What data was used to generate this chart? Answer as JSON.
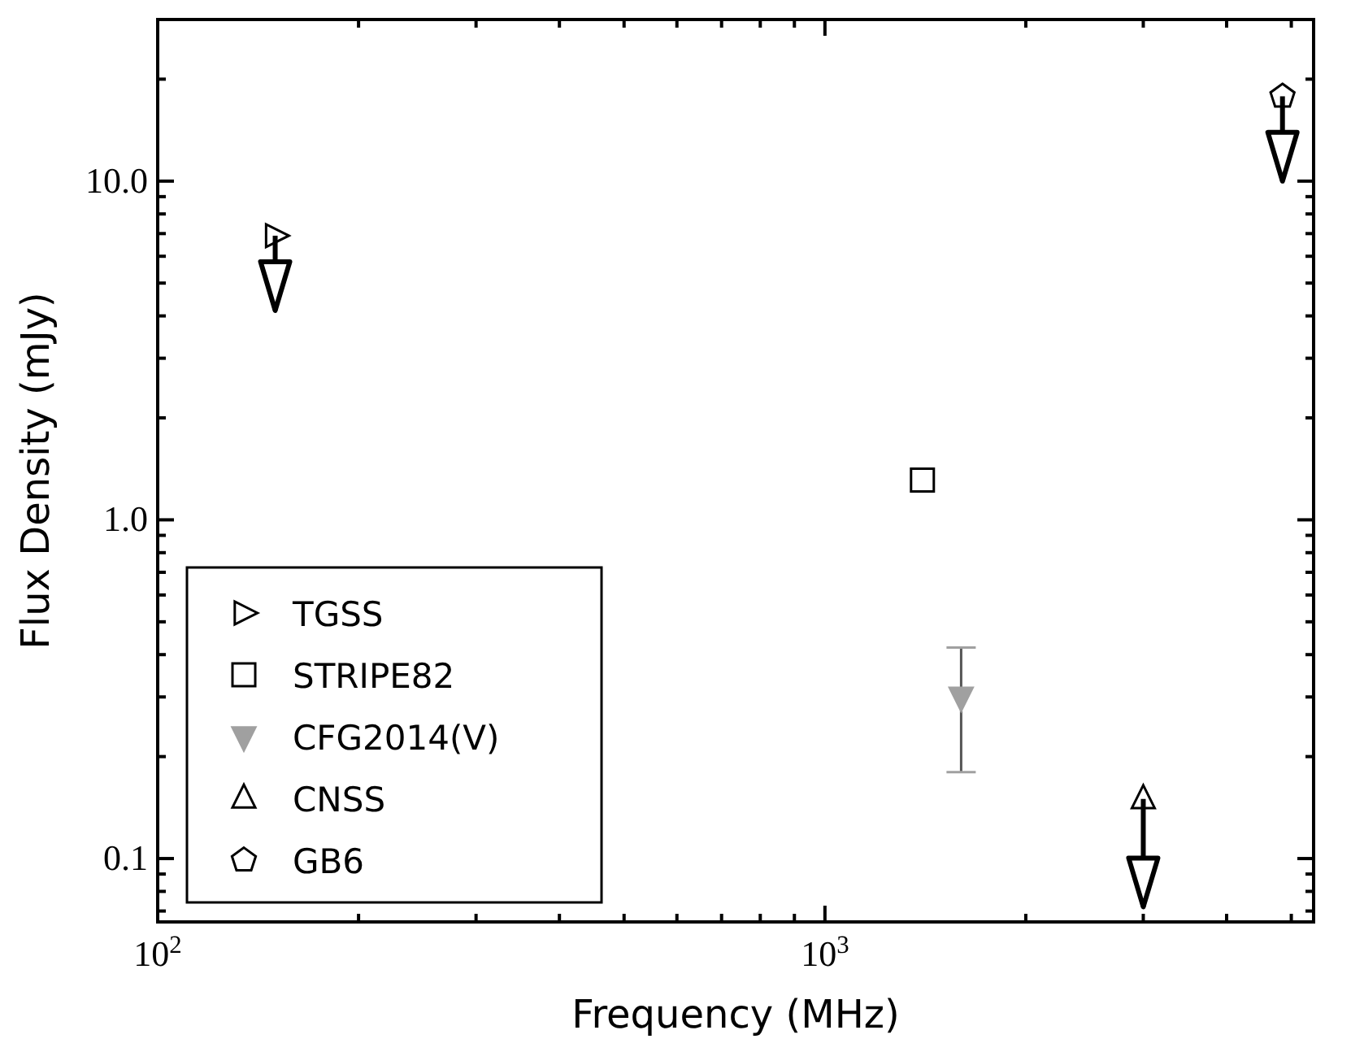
{
  "chart_data": {
    "type": "scatter",
    "xlabel": "Frequency (MHz)",
    "ylabel": "Flux Density (mJy)",
    "log": "xy",
    "xlim": [
      100,
      5400
    ],
    "ylim": [
      0.065,
      30
    ],
    "xticks": [
      {
        "value": 100,
        "label": "10$^{2}$"
      },
      {
        "value": 200,
        "label": null
      },
      {
        "value": 300,
        "label": null
      },
      {
        "value": 400,
        "label": null
      },
      {
        "value": 500,
        "label": null
      },
      {
        "value": 600,
        "label": null
      },
      {
        "value": 700,
        "label": null
      },
      {
        "value": 800,
        "label": null
      },
      {
        "value": 900,
        "label": null
      },
      {
        "value": 1000,
        "label": "10$^{3}$"
      },
      {
        "value": 2000,
        "label": null
      },
      {
        "value": 3000,
        "label": null
      },
      {
        "value": 4000,
        "label": null
      },
      {
        "value": 5000,
        "label": null
      }
    ],
    "yticks": [
      {
        "value": 0.07,
        "label": null
      },
      {
        "value": 0.08,
        "label": null
      },
      {
        "value": 0.09,
        "label": null
      },
      0.1,
      {
        "value": 0.2,
        "label": null
      },
      {
        "value": 0.3,
        "label": null
      },
      {
        "value": 0.4,
        "label": null
      },
      {
        "value": 0.5,
        "label": null
      },
      {
        "value": 0.6,
        "label": null
      },
      {
        "value": 0.7,
        "label": null
      },
      {
        "value": 0.8,
        "label": null
      },
      {
        "value": 0.9,
        "label": null
      },
      {
        "value": 1,
        "label": "1.0"
      },
      {
        "value": 2,
        "label": null
      },
      {
        "value": 3,
        "label": null
      },
      {
        "value": 4,
        "label": null
      },
      {
        "value": 5,
        "label": null
      },
      {
        "value": 6,
        "label": null
      },
      {
        "value": 7,
        "label": null
      },
      {
        "value": 8,
        "label": null
      },
      {
        "value": 9,
        "label": null
      },
      {
        "value": 10,
        "label": "10.0"
      },
      {
        "value": 20,
        "label": null
      }
    ],
    "legend": "bottom left",
    "grid": false,
    "series": [
      {
        "name": "TGSS",
        "color": "#000000",
        "marker": "triangle-right",
        "x": [
          150
        ],
        "values": [
          6.9
        ],
        "errors": [
          [
            4.15,
            6.9
          ]
        ]
      },
      {
        "name": "STRIPE82",
        "color": "#000000",
        "marker": "square",
        "x": [
          1400
        ],
        "values": [
          1.31
        ]
      },
      {
        "name": "CFG2014(V)",
        "color": "#a0a0a0",
        "marker": "triangle-down",
        "x": [
          1600
        ],
        "values": [
          0.3
        ],
        "errors": [
          [
            0.18,
            0.42
          ]
        ]
      },
      {
        "name": "CNSS",
        "color": "#000000",
        "marker": "triangle",
        "x": [
          3000
        ],
        "values": [
          0.15
        ],
        "errors": [
          [
            0.072,
            0.15
          ]
        ]
      },
      {
        "name": "GB6",
        "color": "#000000",
        "x": [
          4850
        ],
        "values": [
          17.8
        ],
        "errors": [
          [
            10,
            17.8
          ]
        ]
      }
    ]
  }
}
